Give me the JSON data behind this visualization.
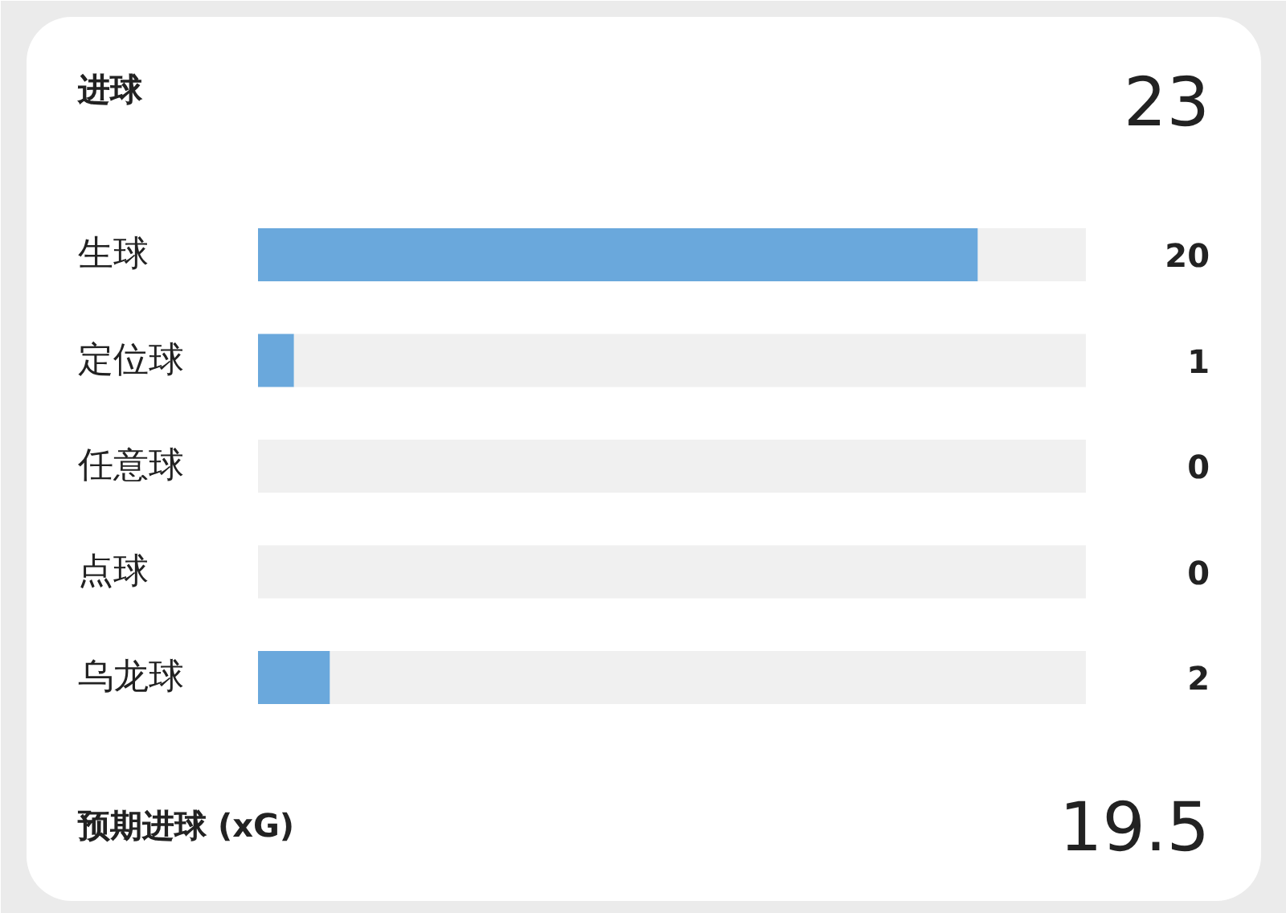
{
  "chart_data": {
    "type": "bar",
    "orientation": "horizontal",
    "title": "进球",
    "categories": [
      "生球",
      "定位球",
      "任意球",
      "点球",
      "乌龙球"
    ],
    "stacked": true,
    "series": [
      {
        "color": "#6aa8dc",
        "values": [
          20,
          1,
          0,
          0,
          2
        ],
        "value_labels": [
          "20",
          "1",
          "0",
          "0",
          "2"
        ]
      },
      {
        "color": "#f0f0f0",
        "values": [
          3,
          22,
          23,
          23,
          21
        ]
      }
    ],
    "xlim": [
      0,
      23
    ],
    "annotations": [
      "23",
      "预期进球 (xG)",
      "19.5"
    ]
  }
}
